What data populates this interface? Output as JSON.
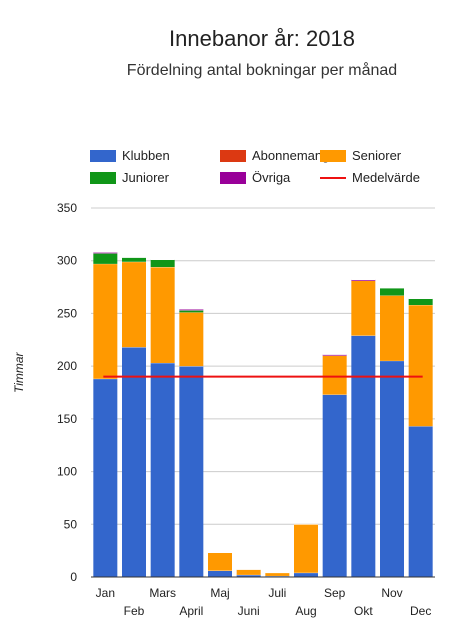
{
  "chart_data": {
    "type": "bar",
    "stacked": true,
    "title": "Innebanor år: 2018",
    "subtitle": "Fördelning antal bokningar per månad",
    "xlabel": "",
    "ylabel": "Timmar",
    "ylim": [
      0,
      350
    ],
    "yticks": [
      0,
      50,
      100,
      150,
      200,
      250,
      300,
      350
    ],
    "grid": true,
    "legend_position": "top",
    "categories": [
      "Jan",
      "Feb",
      "Mars",
      "April",
      "Maj",
      "Juni",
      "Juli",
      "Aug",
      "Sep",
      "Okt",
      "Nov",
      "Dec"
    ],
    "series": [
      {
        "name": "Klubben",
        "color": "#3366cc",
        "values": [
          188,
          218,
          203,
          200,
          6,
          2,
          1,
          4,
          173,
          229,
          205,
          143
        ]
      },
      {
        "name": "Abonnemang",
        "color": "#dc3912",
        "values": [
          0,
          0,
          0,
          0,
          0,
          0,
          0,
          0,
          0,
          0,
          0,
          0
        ]
      },
      {
        "name": "Seniorer",
        "color": "#ff9900",
        "values": [
          109,
          81,
          91,
          51,
          17,
          5,
          3,
          46,
          37,
          52,
          62,
          115
        ]
      },
      {
        "name": "Juniorer",
        "color": "#109618",
        "values": [
          10,
          4,
          7,
          2,
          0,
          0,
          0,
          0,
          0,
          0,
          7,
          6
        ]
      },
      {
        "name": "Övriga",
        "color": "#990099",
        "values": [
          1,
          0,
          0,
          1,
          0,
          0,
          0,
          0,
          1,
          1,
          0,
          0
        ]
      }
    ],
    "reference_line": {
      "name": "Medelvärde",
      "color": "#ee1111",
      "value": 190
    }
  }
}
